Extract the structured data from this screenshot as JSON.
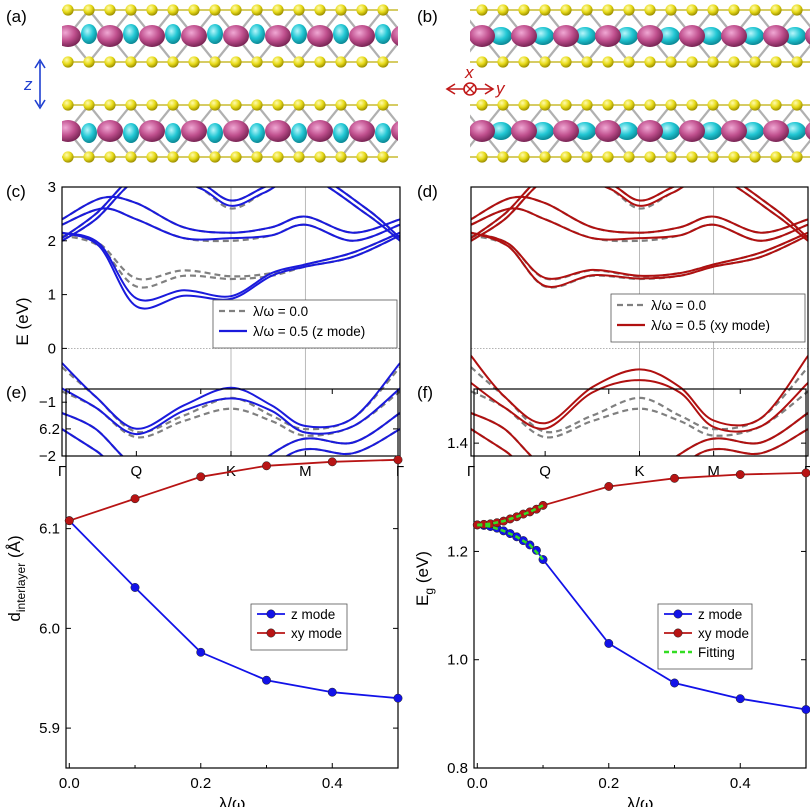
{
  "panel_labels": {
    "a": "(a)",
    "b": "(b)",
    "c": "(c)",
    "d": "(d)",
    "e": "(e)",
    "f": "(f)"
  },
  "structure": {
    "a_axis_label": "z",
    "b_axis_label_x": "x",
    "b_axis_label_y": "y",
    "colors": {
      "sulfur": "#e8dc1a",
      "metal": "#c0508e",
      "density_cyan": "#22c7d4",
      "arrow_blue": "#1f3fd0",
      "arrow_red": "#c01818"
    }
  },
  "chart_data": [
    {
      "id": "c",
      "type": "line",
      "title": "",
      "xlabel": "",
      "ylabel": "E (eV)",
      "ylim": [
        -2,
        3
      ],
      "yticks": [
        "-2",
        "-1",
        "0",
        "1",
        "2",
        "3"
      ],
      "kpath": [
        "Γ",
        "Q",
        "K",
        "M",
        "Γ"
      ],
      "legend": {
        "placement": "center-right",
        "entries": [
          "λ/ω = 0.0",
          "λ/ω = 0.5 (z mode)"
        ]
      },
      "series": [
        {
          "name": "λ/ω = 0.0",
          "style": "dashed",
          "color": "#808080",
          "valence_top_at_K": -0.92,
          "conduction_min_at_K": 1.29
        },
        {
          "name": "λ/ω = 0.5 (z mode)",
          "style": "solid",
          "color": "#1a1adc",
          "valence_top_at_K": -0.73,
          "conduction_min_at_K": 0.92
        }
      ]
    },
    {
      "id": "d",
      "type": "line",
      "title": "",
      "xlabel": "",
      "ylabel": "",
      "ylim": [
        -2,
        3
      ],
      "kpath": [
        "Γ",
        "Q",
        "K",
        "M",
        "Γ"
      ],
      "legend": {
        "placement": "center-right",
        "entries": [
          "λ/ω = 0.0",
          "λ/ω = 0.5 (xy mode)"
        ]
      },
      "series": [
        {
          "name": "λ/ω = 0.0",
          "style": "dashed",
          "color": "#808080",
          "valence_top_at_K": -0.92,
          "conduction_min_at_K": 1.29
        },
        {
          "name": "λ/ω = 0.5 (xy mode)",
          "style": "solid",
          "color": "#b01010",
          "valence_top_at_K": -0.39,
          "conduction_min_at_K": 1.3
        }
      ]
    },
    {
      "id": "e",
      "type": "line",
      "title": "",
      "xlabel": "λ/ω",
      "ylabel": "d",
      "ylabel_sub": "interlayer",
      "ylabel_unit": " (Å)",
      "xlim": [
        -0.005,
        0.5
      ],
      "ylim": [
        5.86,
        6.24
      ],
      "xticks": [
        0.0,
        0.2,
        0.4
      ],
      "xticklabels": [
        "0.0",
        "0.2",
        "0.4"
      ],
      "yticks": [
        5.9,
        6.0,
        6.1,
        6.2
      ],
      "yticklabels": [
        "5.9",
        "6.0",
        "6.1",
        "6.2"
      ],
      "legend": {
        "placement": "center-right"
      },
      "series": [
        {
          "name": "z mode",
          "color": "#1212e8",
          "x": [
            0,
            0.1,
            0.2,
            0.3,
            0.4,
            0.5
          ],
          "values": [
            6.108,
            6.041,
            5.976,
            5.948,
            5.936,
            5.93
          ]
        },
        {
          "name": "xy mode",
          "color": "#b81414",
          "x": [
            0,
            0.1,
            0.2,
            0.3,
            0.4,
            0.5
          ],
          "values": [
            6.108,
            6.13,
            6.152,
            6.163,
            6.167,
            6.169
          ]
        }
      ]
    },
    {
      "id": "f",
      "type": "line",
      "title": "",
      "xlabel": "λ/ω",
      "ylabel": "E",
      "ylabel_sub": "g",
      "ylabel_unit": " (eV)",
      "xlim": [
        -0.005,
        0.5
      ],
      "ylim": [
        0.8,
        1.5
      ],
      "xticks": [
        0.0,
        0.2,
        0.4
      ],
      "xticklabels": [
        "0.0",
        "0.2",
        "0.4"
      ],
      "yticks": [
        0.8,
        1.0,
        1.2,
        1.4
      ],
      "yticklabels": [
        "0.8",
        "1.0",
        "1.2",
        "1.4"
      ],
      "legend": {
        "placement": "center-right"
      },
      "series": [
        {
          "name": "z mode",
          "color": "#1212e8",
          "x": [
            0,
            0.01,
            0.02,
            0.03,
            0.04,
            0.05,
            0.06,
            0.07,
            0.08,
            0.09,
            0.1,
            0.2,
            0.3,
            0.4,
            0.5
          ],
          "values": [
            1.249,
            1.248,
            1.246,
            1.243,
            1.238,
            1.233,
            1.227,
            1.22,
            1.212,
            1.202,
            1.185,
            1.03,
            0.957,
            0.928,
            0.908
          ]
        },
        {
          "name": "xy mode",
          "color": "#b81414",
          "x": [
            0,
            0.01,
            0.02,
            0.03,
            0.04,
            0.05,
            0.06,
            0.07,
            0.08,
            0.09,
            0.1,
            0.2,
            0.3,
            0.4,
            0.5
          ],
          "values": [
            1.249,
            1.25,
            1.251,
            1.253,
            1.256,
            1.26,
            1.264,
            1.269,
            1.273,
            1.278,
            1.285,
            1.32,
            1.335,
            1.342,
            1.345
          ]
        },
        {
          "name": "Fitting",
          "color": "#33dd22",
          "style": "dashed",
          "x": [
            0,
            0.02,
            0.04,
            0.06,
            0.08,
            0.1
          ],
          "values_z": [
            1.249,
            1.246,
            1.238,
            1.227,
            1.212,
            1.185
          ],
          "values_xy": [
            1.249,
            1.251,
            1.256,
            1.264,
            1.273,
            1.285
          ]
        }
      ]
    }
  ]
}
